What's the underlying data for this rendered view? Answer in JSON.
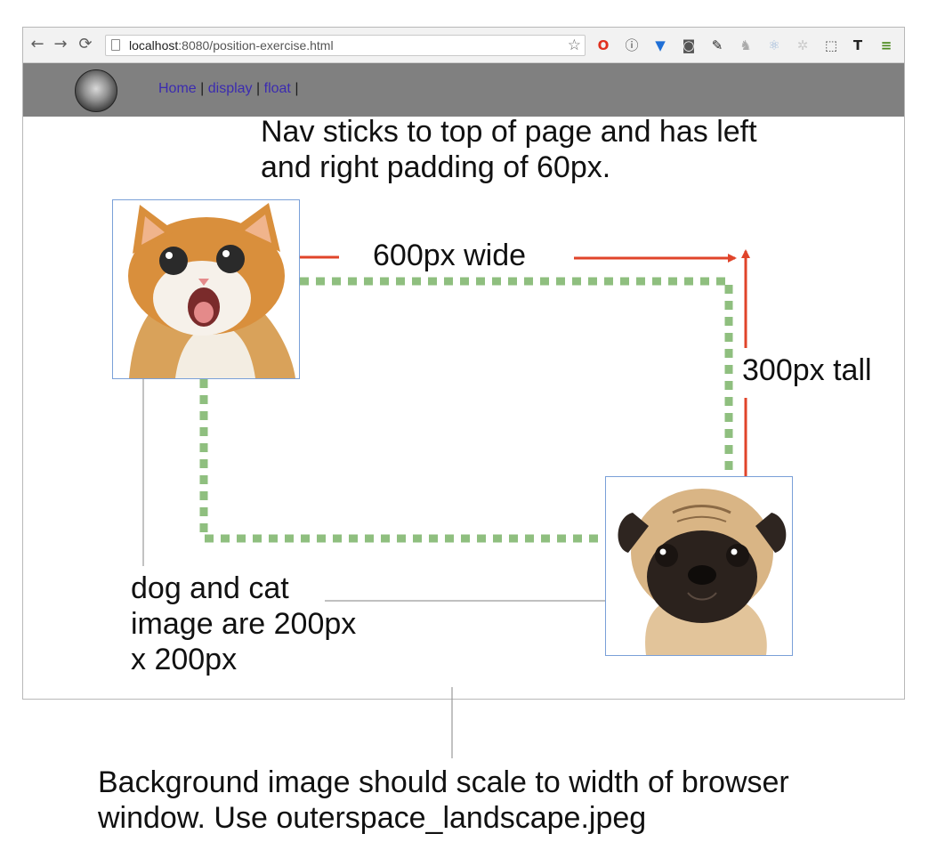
{
  "browser": {
    "url_host": "localhost",
    "url_rest": ":8080/position-exercise.html",
    "back_icon": "back-arrow-icon",
    "forward_icon": "forward-arrow-icon",
    "reload_icon": "reload-icon",
    "bookmark_icon": "star-icon",
    "extensions": [
      "opera-icon",
      "info-icon",
      "vivaldi-icon",
      "pocket-icon",
      "eyedropper-icon",
      "extension-icon",
      "react-icon",
      "puzzle-icon",
      "selection-icon",
      "typography-icon",
      "menu-icon"
    ]
  },
  "nav": {
    "links": [
      "Home",
      "display",
      "float"
    ],
    "separator": "|"
  },
  "annotations": {
    "nav_note": "Nav sticks to top of page and has left and right padding of 60px.",
    "width_note": "600px wide",
    "height_note": "300px tall",
    "size_note": "dog and cat image are 200px x 200px",
    "background_note": "Background image should scale to width of browser window. Use outerspace_landscape.jpeg"
  },
  "colors": {
    "nav_bg": "#808080",
    "link": "#3b2bb0",
    "dashed_box": "#8fbf7f",
    "arrow": "#e0442a",
    "image_border": "#7aa0d8"
  }
}
